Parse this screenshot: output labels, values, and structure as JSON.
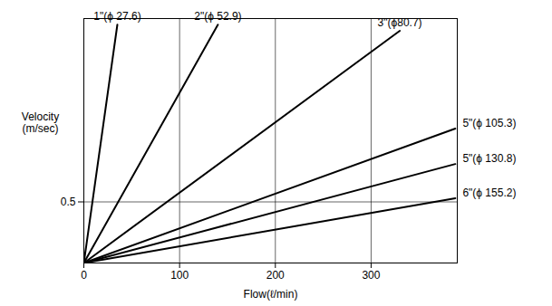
{
  "chart_data": {
    "type": "line",
    "x_label": "Flow(ℓ/min)",
    "y_label": "Velocity\n(m/sec)",
    "xlim": [
      0,
      390
    ],
    "ylim": [
      0,
      2.0
    ],
    "xticks": [
      0,
      100,
      200,
      300
    ],
    "yticks": [
      0.5
    ],
    "grid": true,
    "series": [
      {
        "name": "1\"(ϕ 27.6)",
        "color": "#000000",
        "x": [
          0,
          35
        ],
        "values": [
          0,
          1.95
        ]
      },
      {
        "name": "2\"(ϕ 52.9)",
        "color": "#000000",
        "x": [
          0,
          140
        ],
        "values": [
          0,
          1.95
        ]
      },
      {
        "name": "3\"(ϕ80.7)",
        "color": "#000000",
        "x": [
          0,
          330
        ],
        "values": [
          0,
          1.9
        ]
      },
      {
        "name": "5\"(ϕ 105.3)",
        "color": "#000000",
        "x": [
          0,
          388
        ],
        "values": [
          0,
          1.1
        ]
      },
      {
        "name": "5\"(ϕ 130.8)",
        "color": "#000000",
        "x": [
          0,
          388
        ],
        "values": [
          0,
          0.81
        ]
      },
      {
        "name": "6\"(ϕ 155.2)",
        "color": "#000000",
        "x": [
          0,
          388
        ],
        "values": [
          0,
          0.53
        ]
      }
    ]
  }
}
